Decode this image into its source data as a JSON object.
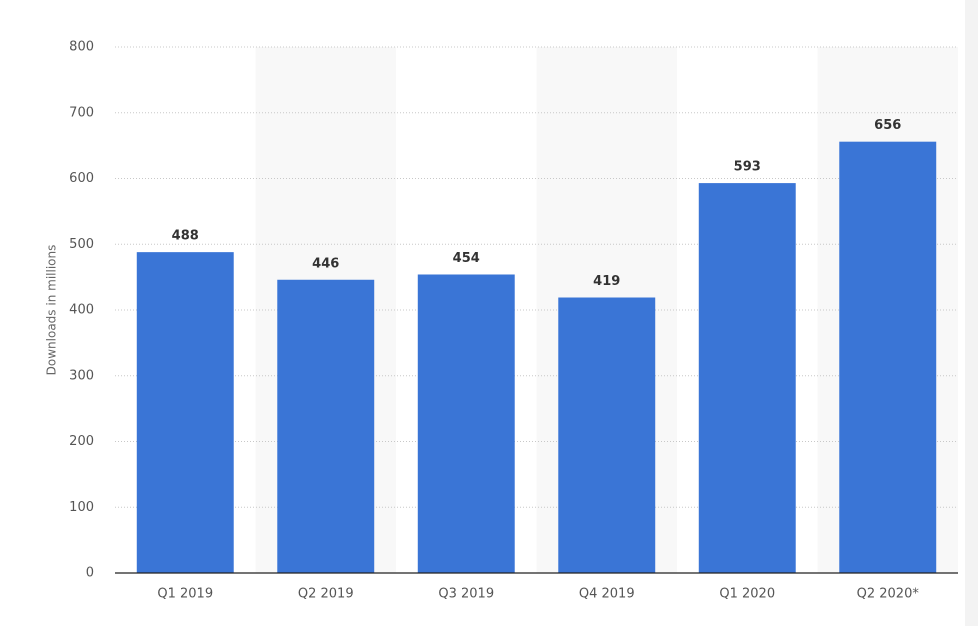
{
  "chart_data": {
    "type": "bar",
    "y_label": "Downloads in millions",
    "categories": [
      "Q1 2019",
      "Q2 2019",
      "Q3 2019",
      "Q4 2019",
      "Q1 2020",
      "Q2 2020*"
    ],
    "values": [
      488,
      446,
      454,
      419,
      593,
      656
    ],
    "color": "#3a75d6",
    "ylim": [
      0,
      800
    ],
    "yticks": [
      0,
      100,
      200,
      300,
      400,
      500,
      600,
      700,
      800
    ],
    "grid": true
  }
}
